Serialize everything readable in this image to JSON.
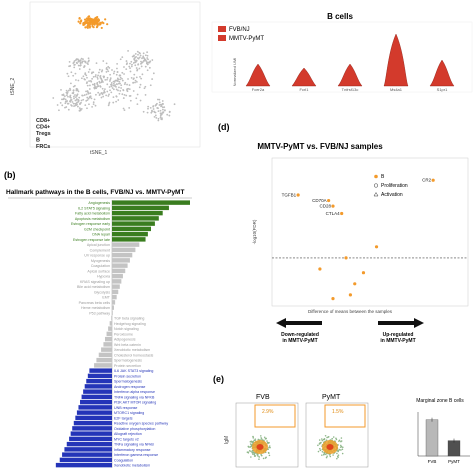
{
  "panel_a": {
    "y_axis_label": "tSNE_2",
    "x_axis_label": "tSNE_1",
    "legend_items": [
      "CD8+",
      "CD4+",
      "Tregs",
      "B",
      "FRCs"
    ],
    "colors": {
      "b_cells": "#f39a2b",
      "other": "#bdbdbd"
    }
  },
  "violin": {
    "title": "B cells",
    "legend": [
      "FVB/NJ",
      "MMTV-PyMT"
    ],
    "y_label": "Normalized UMI",
    "genes": [
      "Fcer2a",
      "Fcrl1",
      "Tnfrsf13c",
      "Ms4a1",
      "S1pr1"
    ],
    "color": "#d33a2c"
  },
  "panel_b": {
    "letter": "(b)",
    "title": "Hallmark pathways in the B cells, FVB/NJ vs. MMTV-PyMT",
    "colors": {
      "up": "#3a7d1f",
      "none": "#c4c4c4",
      "down": "#2434b8"
    },
    "chart_data": {
      "type": "bar",
      "categories": [
        "Angiogenesis",
        "IL2 STAT5 signaling",
        "Fatty acid metabolism",
        "Apoptosis metabolism",
        "Estrogen response early",
        "G2M checkpoint",
        "DNA repair",
        "Estrogen response late",
        "Apical junction",
        "Complement",
        "UV response up",
        "Myogenesis",
        "Coagulation",
        "Apical surface",
        "Hypoxia",
        "KRAS signaling up",
        "Bile acid metabolism",
        "Glycolysis",
        "EMT",
        "Pancreas beta cells",
        "Heme metabolism",
        "P53 pathway",
        "TGF beta signaling",
        "Hedgehog signaling",
        "Notch signaling",
        "Peroxisome",
        "Adipogenesis",
        "Wnt beta catenin",
        "Xenobiotic metabolism",
        "Cholesterol homeostasis",
        "Spermatogenesis",
        "Protein secretion",
        "IL6 JAK STAT3 signaling",
        "Protein secretion",
        "Spermatogenesis",
        "Androgen response",
        "Interferon alpha response",
        "TNFA signaling via NFKB",
        "PI3K AKT MTOR signaling",
        "UNB response",
        "MTORC1 signaling",
        "E2F targets",
        "Reactive oxygen species pathway",
        "Oxidative phosphorylation",
        "Allograft rejection",
        "MYC targets v2",
        "TNFa signaling via NFkB",
        "Inflammatory response",
        "Interferon gamma response",
        "Coagulation",
        "Xenobiotic metabolism"
      ],
      "values": [
        10.0,
        7.3,
        6.5,
        6.0,
        5.5,
        5.0,
        4.6,
        4.3,
        3.5,
        3.0,
        2.6,
        2.3,
        2.0,
        1.7,
        1.4,
        1.2,
        1.0,
        0.8,
        0.6,
        0.4,
        0.25,
        0.1,
        -0.1,
        -0.3,
        -0.5,
        -0.7,
        -0.9,
        -1.1,
        -1.4,
        -1.7,
        -2.0,
        -2.3,
        -2.9,
        -3.1,
        -3.3,
        -3.5,
        -3.7,
        -3.9,
        -4.1,
        -4.3,
        -4.5,
        -4.7,
        -4.9,
        -5.1,
        -5.3,
        -5.5,
        -5.8,
        -6.1,
        -6.4,
        -6.7,
        -7.2
      ],
      "groups": [
        "up",
        "up",
        "up",
        "up",
        "up",
        "up",
        "up",
        "up",
        "none",
        "none",
        "none",
        "none",
        "none",
        "none",
        "none",
        "none",
        "none",
        "none",
        "none",
        "none",
        "none",
        "none",
        "none",
        "none",
        "none",
        "none",
        "none",
        "none",
        "none",
        "none",
        "none",
        "none",
        "down",
        "down",
        "down",
        "down",
        "down",
        "down",
        "down",
        "down",
        "down",
        "down",
        "down",
        "down",
        "down",
        "down",
        "down",
        "down",
        "down",
        "down",
        "down"
      ]
    }
  },
  "panel_d": {
    "letter": "(d)",
    "title": "MMTV-PyMT vs. FVB/NJ samples",
    "x_label": "Difference of means between the samples",
    "y_label": "-log10(FDR)",
    "legend": [
      "B",
      "Proliferation",
      "Activation"
    ],
    "down_label": "Down-regulated in MMTV-PyMT",
    "up_label": "Up-regulated in MMTV-PyMT",
    "point_color": "#f39a2b",
    "chart_data": {
      "type": "scatter",
      "series": [
        {
          "name": "B",
          "points": [
            {
              "label": "TGFB1",
              "x": -0.09,
              "y": 3.0
            },
            {
              "label": "CD70A",
              "x": -0.02,
              "y": 2.85
            },
            {
              "label": "CD28",
              "x": -0.01,
              "y": 2.7
            },
            {
              "label": "CTLA4",
              "x": 0.01,
              "y": 2.5
            },
            {
              "label": "CR2",
              "x": 0.22,
              "y": 3.4
            },
            {
              "label": "",
              "x": 0.02,
              "y": 1.3
            },
            {
              "label": "",
              "x": -0.04,
              "y": 1.0
            },
            {
              "label": "",
              "x": 0.06,
              "y": 0.9
            },
            {
              "label": "",
              "x": 0.03,
              "y": 0.3
            },
            {
              "label": "",
              "x": -0.01,
              "y": 0.2
            },
            {
              "label": "",
              "x": 0.09,
              "y": 1.6
            },
            {
              "label": "",
              "x": 0.04,
              "y": 0.6
            }
          ]
        }
      ]
    }
  },
  "panel_e": {
    "letter": "(e)",
    "labels": [
      "FVB",
      "PyMT"
    ],
    "gate_values": [
      "2.9%",
      "1.5%"
    ],
    "y_axis_label": "IgM",
    "bar_title": "Marginal zone B cells",
    "chart_data": {
      "type": "bar",
      "categories": [
        "FVB",
        "PyMT"
      ],
      "values": [
        33,
        14
      ],
      "colors": [
        "#b8b8b8",
        "#505050"
      ],
      "ylim": [
        0,
        40
      ]
    }
  }
}
